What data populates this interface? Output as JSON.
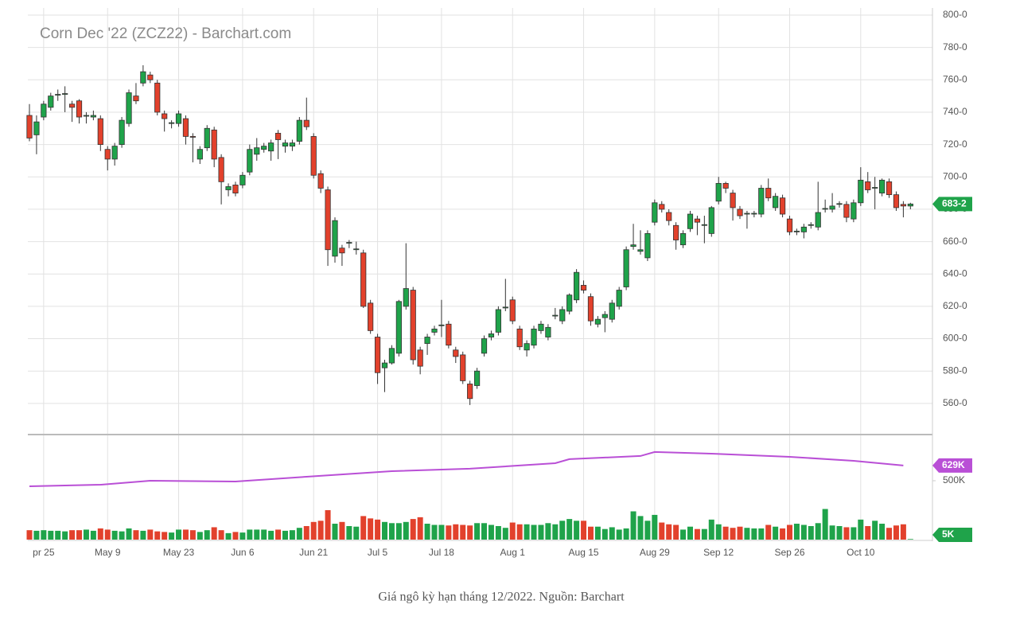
{
  "chart_data": {
    "type": "candlestick",
    "title": "Corn Dec '22 (ZCZ22) - Barchart.com",
    "caption": "Giá ngô kỳ hạn tháng 12/2022. Nguồn: Barchart",
    "categories": [
      null,
      null,
      "pr 25",
      null,
      null,
      null,
      null,
      null,
      null,
      null,
      null,
      "May 9",
      null,
      null,
      null,
      null,
      null,
      null,
      null,
      null,
      null,
      "May 23",
      null,
      null,
      null,
      null,
      null,
      null,
      null,
      null,
      "Jun 6",
      null,
      null,
      null,
      null,
      null,
      null,
      null,
      null,
      null,
      "Jun 21",
      null,
      null,
      null,
      null,
      null,
      null,
      null,
      null,
      "Jul 5",
      null,
      null,
      null,
      null,
      null,
      null,
      null,
      null,
      "Jul 18",
      null,
      null,
      null,
      null,
      null,
      null,
      null,
      null,
      null,
      "Aug 1",
      null,
      null,
      null,
      null,
      null,
      null,
      null,
      null,
      null,
      "Aug 15",
      null,
      null,
      null,
      null,
      null,
      null,
      null,
      null,
      null,
      "Aug 29",
      null,
      null,
      null,
      null,
      null,
      null,
      null,
      null,
      "Sep 12",
      null,
      null,
      null,
      null,
      null,
      null,
      null,
      null,
      null,
      "Sep 26",
      null,
      null,
      null,
      null,
      null,
      null,
      null,
      null,
      null,
      "Oct 10",
      null,
      null,
      null,
      null,
      null,
      null,
      null
    ],
    "ohlc": [
      [
        738,
        745,
        722,
        724
      ],
      [
        726,
        738,
        714,
        734
      ],
      [
        737,
        747,
        735,
        745
      ],
      [
        743,
        752,
        741,
        750
      ],
      [
        751,
        754,
        747,
        751
      ],
      [
        751,
        756,
        740,
        751.5
      ],
      [
        745,
        747,
        734,
        743
      ],
      [
        747,
        748,
        733,
        737
      ],
      [
        738,
        740,
        733,
        738
      ],
      [
        737,
        741,
        735,
        738
      ],
      [
        736,
        738,
        716,
        720
      ],
      [
        717,
        719,
        704,
        711
      ],
      [
        711,
        721,
        707,
        719
      ],
      [
        720,
        737,
        718,
        735
      ],
      [
        733,
        754,
        731,
        752
      ],
      [
        750,
        758,
        745,
        747
      ],
      [
        758,
        769,
        756,
        765
      ],
      [
        763,
        765,
        758,
        760
      ],
      [
        758,
        760,
        738,
        740
      ],
      [
        739,
        741,
        728,
        736
      ],
      [
        733,
        735,
        730,
        733.5
      ],
      [
        733,
        741,
        731,
        739
      ],
      [
        736,
        738,
        720,
        725
      ],
      [
        725,
        727,
        709,
        724.5
      ],
      [
        711,
        719,
        708,
        717
      ],
      [
        718,
        732,
        716,
        730
      ],
      [
        729,
        731,
        706,
        711
      ],
      [
        712,
        714,
        683,
        697
      ],
      [
        692,
        696,
        688,
        694
      ],
      [
        695,
        697,
        688,
        690
      ],
      [
        695,
        703,
        693,
        701
      ],
      [
        703,
        720,
        701,
        717
      ],
      [
        714,
        724,
        710,
        718
      ],
      [
        717,
        721,
        715,
        719
      ],
      [
        716,
        723,
        710,
        721
      ],
      [
        727,
        729,
        711,
        723
      ],
      [
        719,
        723,
        715,
        721
      ],
      [
        719,
        723,
        716,
        721
      ],
      [
        722,
        737,
        720,
        735
      ],
      [
        735,
        749,
        729,
        731
      ],
      [
        725,
        727,
        699,
        701
      ],
      [
        702,
        704,
        690,
        693
      ],
      [
        692,
        694,
        645,
        655
      ],
      [
        651,
        675,
        647,
        673
      ],
      [
        656,
        658,
        645,
        653
      ],
      [
        659,
        661,
        656,
        659.5
      ],
      [
        655,
        660,
        652,
        655.5
      ],
      [
        653,
        655,
        619,
        620
      ],
      [
        622,
        624,
        603,
        605
      ],
      [
        601,
        603,
        572,
        579
      ],
      [
        582,
        587,
        567,
        585
      ],
      [
        585,
        596,
        584,
        594
      ],
      [
        591,
        624,
        589,
        623
      ],
      [
        620,
        659,
        618,
        631
      ],
      [
        630,
        632,
        584,
        587
      ],
      [
        593,
        595,
        578,
        583
      ],
      [
        597,
        603,
        590,
        601
      ],
      [
        604,
        608,
        602,
        606
      ],
      [
        608,
        624,
        601,
        608.5
      ],
      [
        609,
        611,
        594,
        596
      ],
      [
        593,
        595,
        585,
        589
      ],
      [
        590,
        592,
        572,
        574
      ],
      [
        572,
        574,
        559,
        563
      ],
      [
        571,
        582,
        569,
        580
      ],
      [
        591,
        602,
        589,
        600
      ],
      [
        601,
        605,
        599,
        603
      ],
      [
        604,
        620,
        602,
        618
      ],
      [
        619,
        637,
        617,
        619.5
      ],
      [
        624,
        626,
        609,
        611
      ],
      [
        606,
        608,
        593,
        595
      ],
      [
        593,
        599,
        589,
        597
      ],
      [
        596,
        608,
        594,
        606
      ],
      [
        605,
        611,
        603,
        609
      ],
      [
        601,
        609,
        599,
        607
      ],
      [
        614,
        619,
        612,
        614.5
      ],
      [
        611,
        620,
        609,
        618
      ],
      [
        617,
        628,
        615,
        627
      ],
      [
        624,
        643,
        622,
        641
      ],
      [
        633,
        636,
        628,
        630
      ],
      [
        626,
        628,
        608,
        611
      ],
      [
        609,
        614,
        607,
        612
      ],
      [
        613,
        617,
        604,
        615
      ],
      [
        612,
        624,
        610,
        622
      ],
      [
        620,
        632,
        618,
        630
      ],
      [
        632,
        657,
        630,
        655
      ],
      [
        657,
        671,
        655,
        658
      ],
      [
        654,
        667,
        652,
        655
      ],
      [
        650,
        667,
        648,
        665
      ],
      [
        672,
        686,
        670,
        684
      ],
      [
        683,
        685,
        678,
        680
      ],
      [
        678,
        680,
        670,
        673
      ],
      [
        670,
        672,
        655,
        661
      ],
      [
        658,
        667,
        656,
        665
      ],
      [
        668,
        679,
        666,
        677
      ],
      [
        674,
        676,
        664,
        672
      ],
      [
        670,
        676,
        659,
        670.5
      ],
      [
        665,
        682,
        663,
        681
      ],
      [
        685,
        700,
        683,
        696
      ],
      [
        696,
        697,
        690,
        693
      ],
      [
        690,
        692,
        673,
        681
      ],
      [
        680,
        682,
        674,
        676
      ],
      [
        677,
        679,
        668,
        677.5
      ],
      [
        677,
        679,
        675,
        677.5
      ],
      [
        677,
        695,
        675,
        693
      ],
      [
        693,
        699,
        685,
        687
      ],
      [
        681,
        690,
        679,
        688
      ],
      [
        687,
        689,
        675,
        677
      ],
      [
        674,
        676,
        664,
        666
      ],
      [
        666,
        668,
        664,
        666.5
      ],
      [
        666,
        671,
        662,
        669
      ],
      [
        670,
        672,
        668,
        670.5
      ],
      [
        669,
        697,
        667,
        678
      ],
      [
        680,
        686,
        678,
        680.5
      ],
      [
        680,
        690,
        678,
        682
      ],
      [
        683,
        685,
        681,
        683.5
      ],
      [
        683,
        685,
        672,
        675
      ],
      [
        674,
        686,
        672,
        684
      ],
      [
        684,
        706,
        682,
        698
      ],
      [
        697,
        703,
        690,
        692
      ],
      [
        693,
        700,
        680,
        693.5
      ],
      [
        690,
        699,
        688,
        698
      ],
      [
        697,
        699,
        687,
        689
      ],
      [
        689,
        691,
        679,
        681
      ],
      [
        683,
        685,
        675,
        682
      ],
      [
        682,
        684,
        680,
        683.25
      ]
    ],
    "last_label": "683-2",
    "up_color": "#1fa34a",
    "down_color": "#e2412c",
    "ylim": [
      541,
      802
    ],
    "yticks": [
      {
        "value": 560,
        "label": "560-0"
      },
      {
        "value": 580,
        "label": "580-0"
      },
      {
        "value": 600,
        "label": "600-0"
      },
      {
        "value": 620,
        "label": "620-0"
      },
      {
        "value": 640,
        "label": "640-0"
      },
      {
        "value": 660,
        "label": "660-0"
      },
      {
        "value": 680,
        "label": "680-0"
      },
      {
        "value": 700,
        "label": "700-0"
      },
      {
        "value": 720,
        "label": "720-0"
      },
      {
        "value": 740,
        "label": "740-0"
      },
      {
        "value": 760,
        "label": "760-0"
      },
      {
        "value": 780,
        "label": "780-0"
      },
      {
        "value": 800,
        "label": "800-0"
      }
    ],
    "volume": [
      80,
      75,
      80,
      75,
      75,
      70,
      80,
      80,
      85,
      75,
      95,
      85,
      75,
      70,
      95,
      80,
      75,
      85,
      70,
      65,
      60,
      85,
      85,
      80,
      65,
      80,
      105,
      80,
      55,
      65,
      60,
      85,
      85,
      85,
      75,
      85,
      75,
      80,
      100,
      115,
      150,
      160,
      250,
      135,
      150,
      115,
      110,
      200,
      180,
      170,
      150,
      140,
      140,
      150,
      175,
      190,
      135,
      125,
      125,
      120,
      130,
      125,
      120,
      140,
      140,
      125,
      115,
      100,
      145,
      130,
      130,
      125,
      125,
      140,
      130,
      160,
      175,
      160,
      160,
      110,
      110,
      90,
      105,
      85,
      95,
      240,
      200,
      160,
      210,
      145,
      130,
      125,
      85,
      110,
      90,
      90,
      170,
      130,
      110,
      100,
      110,
      100,
      95,
      95,
      125,
      110,
      95,
      125,
      135,
      125,
      115,
      140,
      260,
      120,
      115,
      105,
      105,
      170,
      115,
      160,
      135,
      100,
      120,
      130,
      5
    ],
    "volume_label": "5K",
    "oi_x": [
      0,
      10,
      17,
      29,
      39,
      51,
      62,
      74,
      76,
      86,
      88,
      96,
      107,
      116,
      123
    ],
    "oi": [
      453,
      466,
      500,
      493,
      534,
      581,
      602,
      649,
      683,
      710,
      744,
      730,
      703,
      669,
      629
    ],
    "oi_label": "629K",
    "oi_color": "#b94fd6",
    "y2lim": [
      0,
      892
    ],
    "y2ticks": [
      {
        "value": 500,
        "label": "500K"
      }
    ],
    "grid": true
  }
}
